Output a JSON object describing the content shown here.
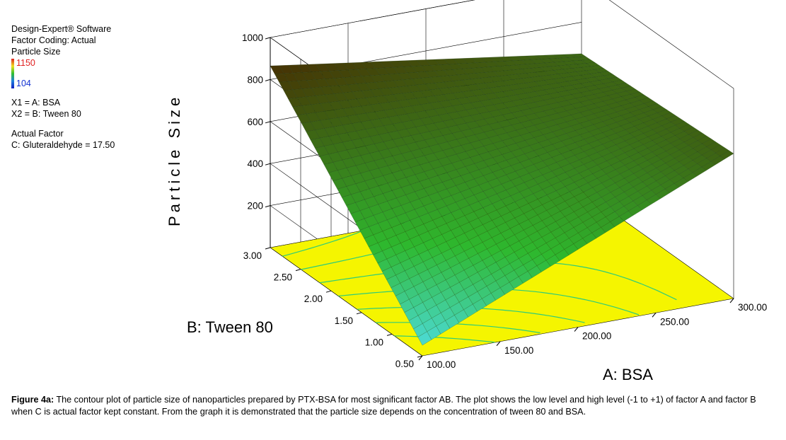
{
  "legend": {
    "software": "Design-Expert® Software",
    "factor_coding": "Factor Coding: Actual",
    "response": "Particle Size",
    "color_max": "1150",
    "color_min": "104",
    "x1": "X1 = A: BSA",
    "x2": "X2 = B: Tween 80",
    "actual_factor_title": "Actual Factor",
    "actual_factor_value": "C: Gluteraldehyde = 17.50"
  },
  "caption": {
    "label": "Figure 4a:",
    "text": " The contour plot of particle size of nanoparticles prepared by PTX-BSA for most significant factor AB. The plot shows the low level and high level (-1 to +1) of factor A and factor B when C is actual factor kept constant. From the graph it is demonstrated that the particle size depends on the concentration of tween 80 and BSA."
  },
  "colors": {
    "floor": "#f5f500",
    "surface_high": "#000000",
    "surface_mid": "#2eb82e",
    "surface_low": "#4ddcdc",
    "contour": "#2ecc7a",
    "grid": "#000000"
  },
  "chart_data": {
    "type": "surface",
    "zlabel": "Particle Size",
    "xlabel": "A: BSA",
    "ylabel": "B: Tween 80",
    "x_range": [
      100,
      300
    ],
    "y_range": [
      0.5,
      3.0
    ],
    "z_range": [
      0,
      1000
    ],
    "x_ticks": [
      "100.00",
      "150.00",
      "200.00",
      "250.00",
      "300.00"
    ],
    "y_ticks": [
      "0.50",
      "1.00",
      "1.50",
      "2.00",
      "2.50",
      "3.00"
    ],
    "z_ticks": [
      "200",
      "400",
      "600",
      "800",
      "1000"
    ],
    "corners": [
      {
        "A": 100,
        "B": 0.5,
        "size": 50
      },
      {
        "A": 300,
        "B": 0.5,
        "size": 690
      },
      {
        "A": 100,
        "B": 3.0,
        "size": 865
      },
      {
        "A": 300,
        "B": 3.0,
        "size": 650
      }
    ],
    "contour_floor": true,
    "grid": true
  }
}
